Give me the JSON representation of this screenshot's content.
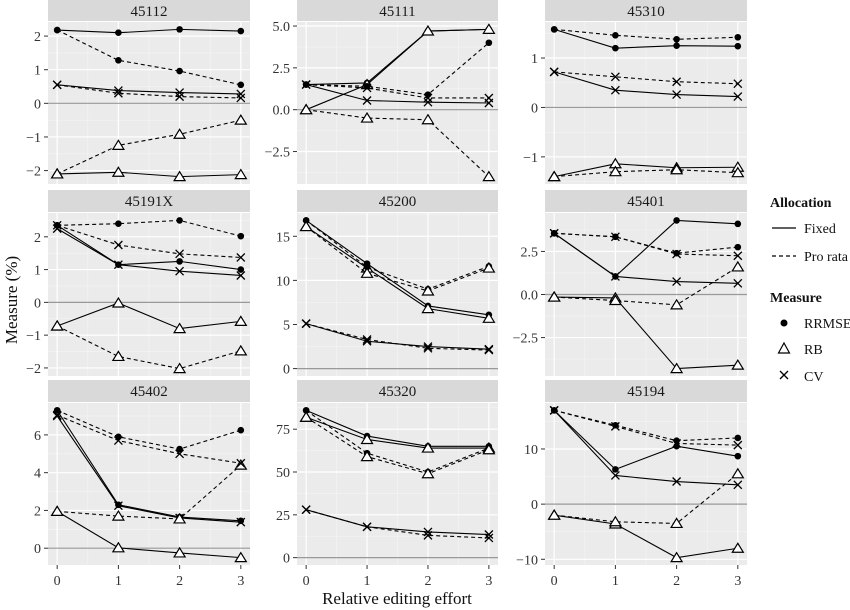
{
  "chart_data": {
    "type": "line",
    "xlabel": "Relative editing effort",
    "ylabel": "Measure (%)",
    "x": [
      0,
      1,
      2,
      3
    ],
    "grid": true,
    "legend": {
      "placement": "right",
      "allocation_title": "Allocation",
      "allocation_items": [
        "Fixed",
        "Pro rata"
      ],
      "measure_title": "Measure",
      "measure_items": [
        "RRMSE",
        "RB",
        "CV"
      ]
    },
    "panels": [
      {
        "title": "45112",
        "yticks": [
          -2,
          -1,
          0,
          1,
          2
        ],
        "ytick_labels": [
          "−2",
          "−1",
          "0",
          "1",
          "2"
        ],
        "series": [
          {
            "allocation": "Fixed",
            "measure": "RRMSE",
            "values": [
              2.18,
              2.1,
              2.2,
              2.15
            ]
          },
          {
            "allocation": "Fixed",
            "measure": "RB",
            "values": [
              -2.1,
              -2.05,
              -2.18,
              -2.12
            ]
          },
          {
            "allocation": "Fixed",
            "measure": "CV",
            "values": [
              0.55,
              0.38,
              0.32,
              0.28
            ]
          },
          {
            "allocation": "Pro rata",
            "measure": "RRMSE",
            "values": [
              2.18,
              1.28,
              0.96,
              0.55
            ]
          },
          {
            "allocation": "Pro rata",
            "measure": "RB",
            "values": [
              -2.1,
              -1.25,
              -0.92,
              -0.5
            ]
          },
          {
            "allocation": "Pro rata",
            "measure": "CV",
            "values": [
              0.55,
              0.3,
              0.2,
              0.16
            ]
          }
        ]
      },
      {
        "title": "45111",
        "yticks": [
          -2.5,
          0,
          2.5,
          5
        ],
        "ytick_labels": [
          "−2.5",
          "0.0",
          "2.5",
          "5.0"
        ],
        "series": [
          {
            "allocation": "Fixed",
            "measure": "RRMSE",
            "values": [
              1.5,
              1.6,
              4.7,
              4.8
            ]
          },
          {
            "allocation": "Fixed",
            "measure": "RB",
            "values": [
              0,
              1.5,
              4.7,
              4.8
            ]
          },
          {
            "allocation": "Fixed",
            "measure": "CV",
            "values": [
              1.5,
              0.55,
              0.45,
              0.4
            ]
          },
          {
            "allocation": "Pro rata",
            "measure": "RRMSE",
            "values": [
              1.5,
              1.4,
              0.9,
              4.0
            ]
          },
          {
            "allocation": "Pro rata",
            "measure": "RB",
            "values": [
              0,
              -0.5,
              -0.6,
              -4.0
            ]
          },
          {
            "allocation": "Pro rata",
            "measure": "CV",
            "values": [
              1.5,
              1.3,
              0.7,
              0.7
            ]
          }
        ]
      },
      {
        "title": "45310",
        "yticks": [
          -1,
          0,
          1
        ],
        "ytick_labels": [
          "−1",
          "0",
          "1"
        ],
        "series": [
          {
            "allocation": "Fixed",
            "measure": "RRMSE",
            "values": [
              1.58,
              1.2,
              1.25,
              1.24
            ]
          },
          {
            "allocation": "Fixed",
            "measure": "RB",
            "values": [
              -1.4,
              -1.14,
              -1.22,
              -1.21
            ]
          },
          {
            "allocation": "Fixed",
            "measure": "CV",
            "values": [
              0.72,
              0.35,
              0.26,
              0.22
            ]
          },
          {
            "allocation": "Pro rata",
            "measure": "RRMSE",
            "values": [
              1.58,
              1.46,
              1.38,
              1.42
            ]
          },
          {
            "allocation": "Pro rata",
            "measure": "RB",
            "values": [
              -1.4,
              -1.3,
              -1.26,
              -1.32
            ]
          },
          {
            "allocation": "Pro rata",
            "measure": "CV",
            "values": [
              0.72,
              0.62,
              0.52,
              0.48
            ]
          }
        ]
      },
      {
        "title": "45191X",
        "yticks": [
          -2,
          -1,
          0,
          1,
          2
        ],
        "ytick_labels": [
          "−2",
          "−1",
          "0",
          "1",
          "2"
        ],
        "series": [
          {
            "allocation": "Fixed",
            "measure": "RRMSE",
            "values": [
              2.35,
              1.15,
              1.25,
              1.0
            ]
          },
          {
            "allocation": "Fixed",
            "measure": "RB",
            "values": [
              -0.72,
              -0.02,
              -0.8,
              -0.58
            ]
          },
          {
            "allocation": "Fixed",
            "measure": "CV",
            "values": [
              2.25,
              1.15,
              0.95,
              0.82
            ]
          },
          {
            "allocation": "Pro rata",
            "measure": "RRMSE",
            "values": [
              2.35,
              2.4,
              2.5,
              2.02
            ]
          },
          {
            "allocation": "Pro rata",
            "measure": "RB",
            "values": [
              -0.72,
              -1.65,
              -2.02,
              -1.48
            ]
          },
          {
            "allocation": "Pro rata",
            "measure": "CV",
            "values": [
              2.35,
              1.75,
              1.48,
              1.37
            ]
          }
        ]
      },
      {
        "title": "45200",
        "yticks": [
          0,
          5,
          10,
          15
        ],
        "ytick_labels": [
          "0",
          "5",
          "10",
          "15"
        ],
        "series": [
          {
            "allocation": "Fixed",
            "measure": "RRMSE",
            "values": [
              16.8,
              11.9,
              7.1,
              6.1
            ]
          },
          {
            "allocation": "Fixed",
            "measure": "RB",
            "values": [
              16.1,
              11.4,
              6.8,
              5.7
            ]
          },
          {
            "allocation": "Fixed",
            "measure": "CV",
            "values": [
              5.1,
              3.1,
              2.5,
              2.2
            ]
          },
          {
            "allocation": "Pro rata",
            "measure": "RRMSE",
            "values": [
              16.8,
              11.5,
              9.0,
              11.6
            ]
          },
          {
            "allocation": "Pro rata",
            "measure": "RB",
            "values": [
              16.1,
              10.8,
              8.8,
              11.4
            ]
          },
          {
            "allocation": "Pro rata",
            "measure": "CV",
            "values": [
              5.1,
              3.3,
              2.3,
              2.1
            ]
          }
        ]
      },
      {
        "title": "45401",
        "yticks": [
          -2.5,
          0,
          2.5
        ],
        "ytick_labels": [
          "−2.5",
          "0.0",
          "2.5"
        ],
        "series": [
          {
            "allocation": "Fixed",
            "measure": "RRMSE",
            "values": [
              3.55,
              1.05,
              4.3,
              4.1
            ]
          },
          {
            "allocation": "Fixed",
            "measure": "RB",
            "values": [
              -0.15,
              -0.2,
              -4.3,
              -4.1
            ]
          },
          {
            "allocation": "Fixed",
            "measure": "CV",
            "values": [
              3.55,
              1.05,
              0.75,
              0.65
            ]
          },
          {
            "allocation": "Pro rata",
            "measure": "RRMSE",
            "values": [
              3.55,
              3.35,
              2.4,
              2.75
            ]
          },
          {
            "allocation": "Pro rata",
            "measure": "RB",
            "values": [
              -0.15,
              -0.35,
              -0.6,
              1.6
            ]
          },
          {
            "allocation": "Pro rata",
            "measure": "CV",
            "values": [
              3.55,
              3.35,
              2.35,
              2.25
            ]
          }
        ]
      },
      {
        "title": "45402",
        "yticks": [
          0,
          2,
          4,
          6
        ],
        "ytick_labels": [
          "0",
          "2",
          "4",
          "6"
        ],
        "series": [
          {
            "allocation": "Fixed",
            "measure": "RRMSE",
            "values": [
              7.3,
              2.3,
              1.65,
              1.45
            ]
          },
          {
            "allocation": "Fixed",
            "measure": "RB",
            "values": [
              1.95,
              0.02,
              -0.25,
              -0.5
            ]
          },
          {
            "allocation": "Fixed",
            "measure": "CV",
            "values": [
              7.0,
              2.25,
              1.6,
              1.38
            ]
          },
          {
            "allocation": "Pro rata",
            "measure": "RRMSE",
            "values": [
              7.3,
              5.9,
              5.25,
              6.25
            ]
          },
          {
            "allocation": "Pro rata",
            "measure": "RB",
            "values": [
              1.95,
              1.7,
              1.55,
              4.4
            ]
          },
          {
            "allocation": "Pro rata",
            "measure": "CV",
            "values": [
              7.05,
              5.7,
              5.0,
              4.5
            ]
          }
        ]
      },
      {
        "title": "45320",
        "yticks": [
          0,
          25,
          50,
          75
        ],
        "ytick_labels": [
          "0",
          "25",
          "50",
          "75"
        ],
        "series": [
          {
            "allocation": "Fixed",
            "measure": "RRMSE",
            "values": [
              86,
              71,
              65,
              65
            ]
          },
          {
            "allocation": "Fixed",
            "measure": "RB",
            "values": [
              82,
              69,
              64,
              64
            ]
          },
          {
            "allocation": "Fixed",
            "measure": "CV",
            "values": [
              28,
              18,
              15,
              13.5
            ]
          },
          {
            "allocation": "Pro rata",
            "measure": "RRMSE",
            "values": [
              86,
              61,
              50,
              64
            ]
          },
          {
            "allocation": "Pro rata",
            "measure": "RB",
            "values": [
              82,
              59,
              49,
              63
            ]
          },
          {
            "allocation": "Pro rata",
            "measure": "CV",
            "values": [
              28,
              18,
              13,
              11.5
            ]
          }
        ]
      },
      {
        "title": "45194",
        "yticks": [
          -10,
          0,
          10
        ],
        "ytick_labels": [
          "−10",
          "0",
          "10"
        ],
        "series": [
          {
            "allocation": "Fixed",
            "measure": "RRMSE",
            "values": [
              17,
              6.3,
              10.5,
              8.7
            ]
          },
          {
            "allocation": "Fixed",
            "measure": "RB",
            "values": [
              -2,
              -3.6,
              -9.7,
              -8.0
            ]
          },
          {
            "allocation": "Fixed",
            "measure": "CV",
            "values": [
              17,
              5.2,
              4.1,
              3.5
            ]
          },
          {
            "allocation": "Pro rata",
            "measure": "RRMSE",
            "values": [
              17,
              14.3,
              11.5,
              12.0
            ]
          },
          {
            "allocation": "Pro rata",
            "measure": "RB",
            "values": [
              -2,
              -3.2,
              -3.5,
              5.5
            ]
          },
          {
            "allocation": "Pro rata",
            "measure": "CV",
            "values": [
              17,
              14.1,
              11.0,
              10.7
            ]
          }
        ]
      }
    ]
  }
}
